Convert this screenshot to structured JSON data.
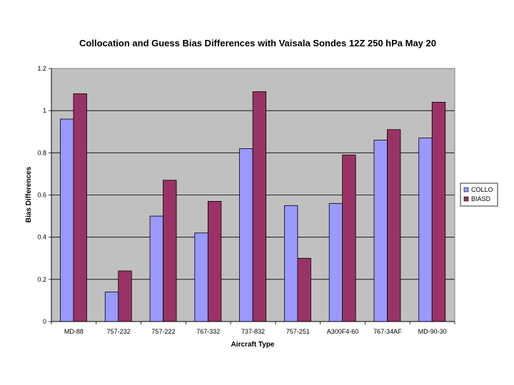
{
  "chart_data": {
    "type": "bar",
    "title": "Collocation and Guess Bias Differences with Vaisala Sondes 12Z 250 hPa May 20",
    "xlabel": "Aircraft Type",
    "ylabel": "Bias Differences",
    "ylim": [
      0,
      1.2
    ],
    "yticks": [
      0,
      0.2,
      0.4,
      0.6,
      0.8,
      1,
      1.2
    ],
    "ytick_labels": [
      "0",
      "0.2",
      "0.4",
      "0.6",
      "0.8",
      "1",
      "1.2"
    ],
    "grid": true,
    "legend_position": "right",
    "categories": [
      "MD-88",
      "757-232",
      "757-222",
      "767-332",
      "737-832",
      "757-251",
      "A300F4-60",
      "767-34AF",
      "MD-90-30"
    ],
    "series": [
      {
        "name": "COLLO",
        "color": "#9999ff",
        "values": [
          0.96,
          0.14,
          0.5,
          0.42,
          0.82,
          0.55,
          0.56,
          0.86,
          0.87
        ]
      },
      {
        "name": "BIASD",
        "color": "#993366",
        "values": [
          1.08,
          0.24,
          0.67,
          0.57,
          1.09,
          0.3,
          0.79,
          0.91,
          1.04
        ]
      }
    ],
    "plot_background": "#c0c0c0"
  }
}
